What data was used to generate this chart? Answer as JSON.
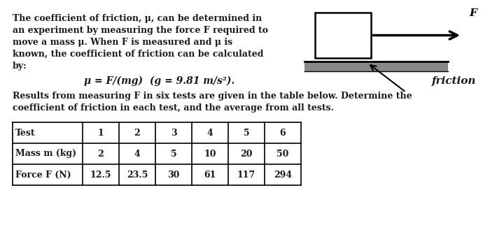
{
  "bg_color": "#ffffff",
  "text_color": "#1a1a1a",
  "paragraph1_lines": [
    "The coefficient of friction, μ, can be determined in",
    "an experiment by measuring the force F required to",
    "move a mass μ. When F is measured and μ is",
    "known, the coefficient of friction can be calculated",
    "by:"
  ],
  "formula": "μ = F/(mg)  (g = 9.81 m/s²).",
  "friction_label": "friction",
  "paragraph2_lines": [
    "Results from measuring F in six tests are given in the table below. Determine the",
    "coefficient of friction in each test, and the average from all tests."
  ],
  "table_headers": [
    "Test",
    "1",
    "2",
    "3",
    "4",
    "5",
    "6"
  ],
  "table_row1_label": "Mass m (kg)",
  "table_row1_values": [
    "2",
    "4",
    "5",
    "10",
    "20",
    "50"
  ],
  "table_row2_label": "Force F (N)",
  "table_row2_values": [
    "12.5",
    "23.5",
    "30",
    "61",
    "117",
    "294"
  ]
}
